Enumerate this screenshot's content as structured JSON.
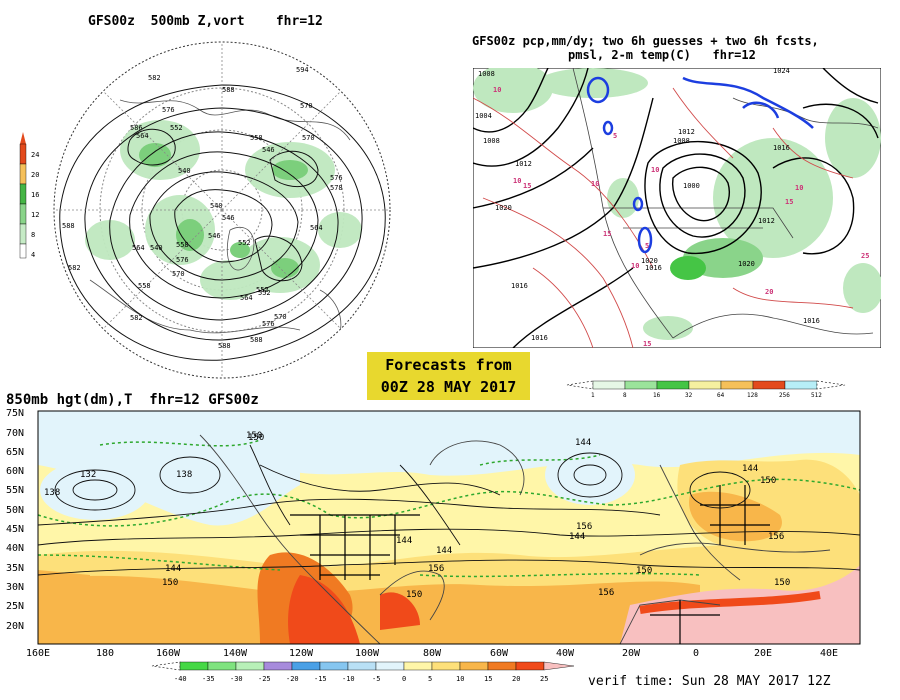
{
  "panel_500mb": {
    "title": "GFS00z  500mb Z,vort    fhr=12",
    "legend_ticks": [
      "24",
      "20",
      "16",
      "12",
      "8",
      "4"
    ],
    "legend_colors": [
      "#e34a1c",
      "#f5c05a",
      "#45b545",
      "#8ad48a",
      "#c6ebc6",
      "#ffffff"
    ],
    "contour_labels": [
      "582",
      "594",
      "588",
      "576",
      "564",
      "552",
      "540",
      "570",
      "558",
      "546",
      "586",
      "564",
      "570",
      "576",
      "564",
      "578",
      "552",
      "546",
      "540",
      "552",
      "558",
      "576",
      "582",
      "588",
      "582",
      "588",
      "576",
      "570",
      "564",
      "552",
      "540",
      "546",
      "558",
      "570",
      "588"
    ]
  },
  "panel_pcp": {
    "title_line1": "GFS00z pcp,mm/dy; two 6h guesses + two 6h fcsts,",
    "title_line2": "pmsl, 2-m temp(C)   fhr=12",
    "isobar_labels": [
      "1008",
      "1004",
      "1008",
      "1012",
      "1020",
      "1016",
      "1016",
      "1012",
      "1000",
      "1008",
      "1012",
      "1016",
      "1020",
      "1024",
      "1016",
      "1016",
      "1020"
    ],
    "temp_labels": [
      "10",
      "15",
      "10",
      "15",
      "10",
      "5",
      "10",
      "15",
      "10",
      "20",
      "25",
      "15",
      "10",
      "5"
    ],
    "legend_ticks": [
      "1",
      "8",
      "16",
      "32",
      "64",
      "128",
      "256",
      "512"
    ],
    "legend_colors": [
      "#e6f7e6",
      "#9be39b",
      "#45c545",
      "#f5f0a0",
      "#f5c05a",
      "#f59a1c",
      "#e34a1c",
      "#b7eef7"
    ]
  },
  "banner": {
    "line1": "Forecasts from",
    "line2": "00Z 28 MAY 2017"
  },
  "panel_850mb": {
    "title": "850mb hgt(dm),T  fhr=12 GFS00z",
    "lat_labels": [
      "75N",
      "70N",
      "65N",
      "60N",
      "55N",
      "50N",
      "45N",
      "40N",
      "35N",
      "30N",
      "25N",
      "20N"
    ],
    "lon_labels": [
      "160E",
      "180",
      "160W",
      "140W",
      "120W",
      "100W",
      "80W",
      "60W",
      "40W",
      "20W",
      "0",
      "20E",
      "40E"
    ],
    "height_labels": [
      "132",
      "138",
      "138",
      "150",
      "144",
      "150",
      "144",
      "156",
      "144",
      "156",
      "144",
      "150",
      "156",
      "150",
      "144",
      "150",
      "156",
      "150",
      "144",
      "150"
    ],
    "temp_scale_ticks": [
      "-40",
      "-35",
      "-30",
      "-25",
      "-20",
      "-15",
      "-10",
      "-5",
      "0",
      "5",
      "10",
      "15",
      "20",
      "25"
    ],
    "temp_scale_colors": [
      "#45d845",
      "#7fe37f",
      "#b8f0b8",
      "#a78bdc",
      "#4aa0e6",
      "#86c6f0",
      "#b9e0f5",
      "#e2f4fb",
      "#ffffd6",
      "#fff6a8",
      "#fde07a",
      "#f8b64a",
      "#f07a22",
      "#f04a1a",
      "#f8c0c0"
    ],
    "verif_time": "verif time: Sun 28 MAY 2017 12Z"
  }
}
